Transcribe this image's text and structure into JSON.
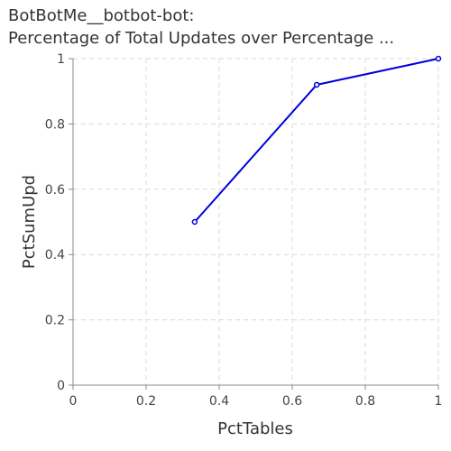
{
  "chart_data": {
    "type": "line",
    "title_line1": "BotBotMe__botbot-bot:",
    "title_line2": "Percentage of Total Updates over Percentage ...",
    "xlabel": "PctTables",
    "ylabel": "PctSumUpd",
    "xlim": [
      0,
      1
    ],
    "ylim": [
      0,
      1
    ],
    "x_ticks": [
      0,
      0.2,
      0.4,
      0.6,
      0.8,
      1
    ],
    "x_tick_labels": [
      "0",
      "0.2",
      "0.4",
      "0.6",
      "0.8",
      "1"
    ],
    "y_ticks": [
      0,
      0.2,
      0.4,
      0.6,
      0.8,
      1
    ],
    "y_tick_labels": [
      "0",
      "0.2",
      "0.4",
      "0.6",
      "0.8",
      "1"
    ],
    "grid": true,
    "series": [
      {
        "name": "PctSumUpd",
        "color": "#0000dd",
        "x": [
          0.333,
          0.667,
          1.0
        ],
        "y": [
          0.5,
          0.92,
          1.0
        ]
      }
    ]
  }
}
